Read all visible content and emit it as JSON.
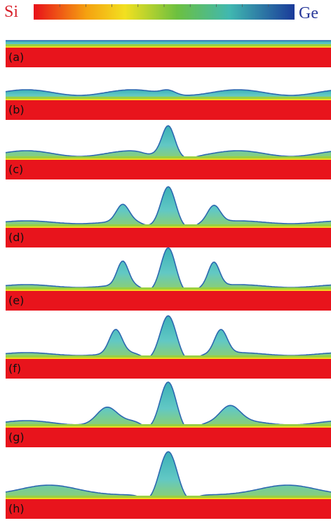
{
  "colorbar": {
    "left_label": "Si",
    "right_label": "Ge"
  },
  "panels": [
    {
      "label": "(a)"
    },
    {
      "label": "(b)"
    },
    {
      "label": "(c)"
    },
    {
      "label": "(d)"
    },
    {
      "label": "(e)"
    },
    {
      "label": "(f)"
    },
    {
      "label": "(g)"
    },
    {
      "label": "(h)"
    }
  ]
}
